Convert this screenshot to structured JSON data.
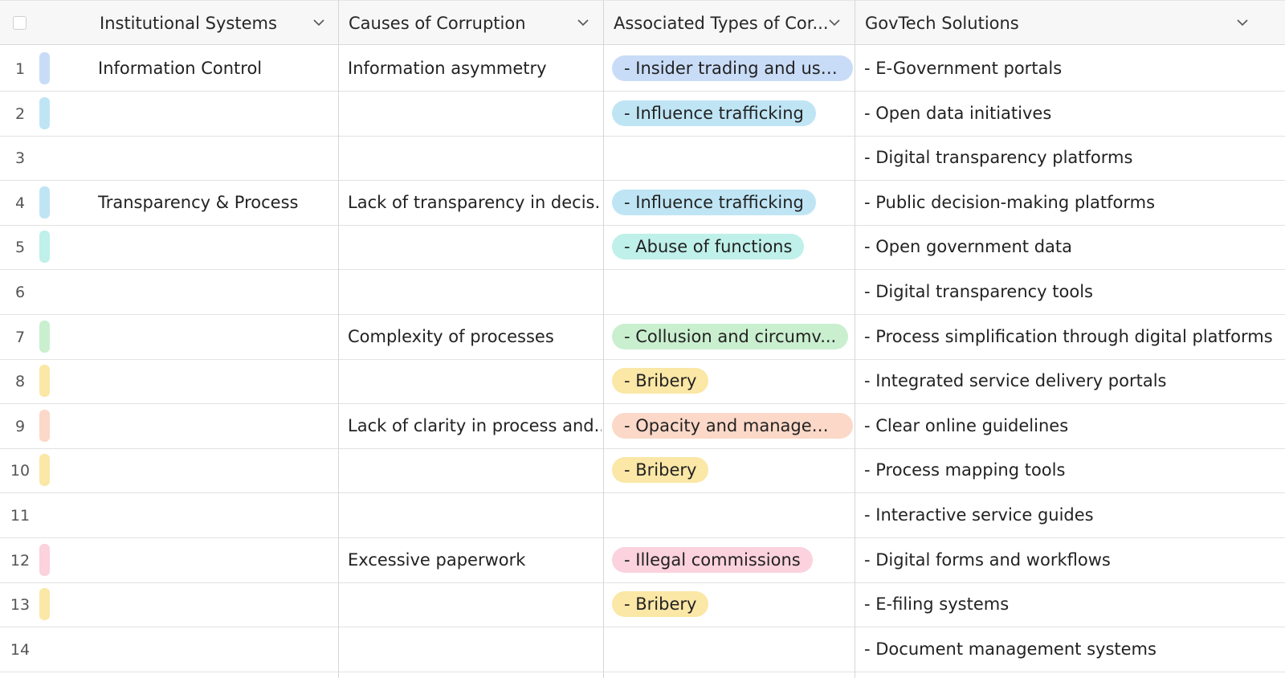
{
  "columns": [
    {
      "label": "Institutional Systems"
    },
    {
      "label": "Causes of Corruption"
    },
    {
      "label": "Associated Types of Cor..."
    },
    {
      "label": "GovTech Solutions"
    }
  ],
  "rows": [
    {
      "num": "1",
      "bar": "#c9dcf7",
      "system": "Information Control",
      "cause": "Information asymmetry",
      "type": "- Insider trading and use...",
      "chip": "#c9dcf7",
      "solution": "- E-Government portals"
    },
    {
      "num": "2",
      "bar": "#bfe5f5",
      "system": "",
      "cause": "",
      "type": "- Influence trafficking",
      "chip": "#bfe5f5",
      "solution": "- Open data initiatives"
    },
    {
      "num": "3",
      "bar": "",
      "system": "",
      "cause": "",
      "type": "",
      "chip": "",
      "solution": "- Digital transparency platforms"
    },
    {
      "num": "4",
      "bar": "#bfe5f5",
      "system": "Transparency & Process",
      "cause": "Lack of transparency in decis...",
      "type": "- Influence trafficking",
      "chip": "#bfe5f5",
      "solution": "- Public decision-making platforms"
    },
    {
      "num": "5",
      "bar": "#bff0ea",
      "system": "",
      "cause": "",
      "type": "- Abuse of functions",
      "chip": "#bff0ea",
      "solution": "- Open government data"
    },
    {
      "num": "6",
      "bar": "",
      "system": "",
      "cause": "",
      "type": "",
      "chip": "",
      "solution": "- Digital transparency tools"
    },
    {
      "num": "7",
      "bar": "#c9efcf",
      "system": "",
      "cause": "Complexity of processes",
      "type": "- Collusion and circumv...",
      "chip": "#c9efcf",
      "solution": "- Process simplification through digital platforms"
    },
    {
      "num": "8",
      "bar": "#fbe7a6",
      "system": "",
      "cause": "",
      "type": "- Bribery",
      "chip": "#fbe7a6",
      "solution": "- Integrated service delivery portals"
    },
    {
      "num": "9",
      "bar": "#fbd8c8",
      "system": "",
      "cause": "Lack of clarity in process and...",
      "type": "- Opacity and managem...",
      "chip": "#fbd8c8",
      "solution": "- Clear online guidelines"
    },
    {
      "num": "10",
      "bar": "#fbe7a6",
      "system": "",
      "cause": "",
      "type": "- Bribery",
      "chip": "#fbe7a6",
      "solution": "- Process mapping tools"
    },
    {
      "num": "11",
      "bar": "",
      "system": "",
      "cause": "",
      "type": "",
      "chip": "",
      "solution": "- Interactive service guides"
    },
    {
      "num": "12",
      "bar": "#fbd2de",
      "system": "",
      "cause": "Excessive paperwork",
      "type": "- Illegal commissions",
      "chip": "#fbd2de",
      "solution": "- Digital forms and workflows"
    },
    {
      "num": "13",
      "bar": "#fbe7a6",
      "system": "",
      "cause": "",
      "type": "- Bribery",
      "chip": "#fbe7a6",
      "solution": "- E-filing systems"
    },
    {
      "num": "14",
      "bar": "",
      "system": "",
      "cause": "",
      "type": "",
      "chip": "",
      "solution": "- Document management systems"
    }
  ]
}
